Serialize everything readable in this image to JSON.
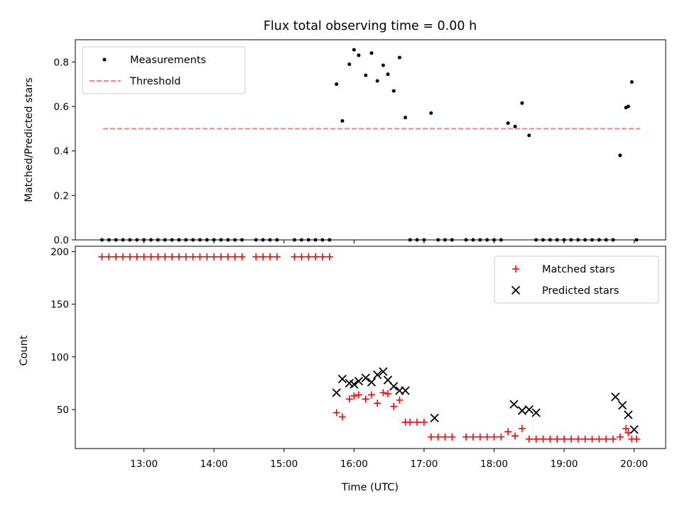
{
  "chart_data": [
    {
      "type": "scatter",
      "title": "Flux total observing time = 0.00 h",
      "xlabel": "",
      "ylabel": "Matched/Predicted stars",
      "xlim_hours": [
        12.02,
        20.45
      ],
      "ylim": [
        0,
        0.9
      ],
      "yticks": [
        0.0,
        0.2,
        0.4,
        0.6,
        0.8
      ],
      "ytick_labels": [
        "0.0",
        "0.2",
        "0.4",
        "0.6",
        "0.8"
      ],
      "legend": {
        "position": "upper left",
        "entries": [
          "Measurements",
          "Threshold"
        ]
      },
      "series": [
        {
          "name": "Measurements",
          "color": "#000000",
          "marker": "dot",
          "x": [
            "12:24",
            "12:30",
            "12:36",
            "12:42",
            "12:48",
            "12:54",
            "13:00",
            "13:06",
            "13:12",
            "13:18",
            "13:24",
            "13:30",
            "13:36",
            "13:42",
            "13:48",
            "13:54",
            "14:00",
            "14:06",
            "14:12",
            "14:18",
            "14:24",
            "14:36",
            "14:42",
            "14:48",
            "14:54",
            "15:09",
            "15:15",
            "15:21",
            "15:27",
            "15:33",
            "15:39",
            "15:45",
            "15:50",
            "15:56",
            "16:00",
            "16:04",
            "16:10",
            "16:15",
            "16:20",
            "16:25",
            "16:29",
            "16:34",
            "16:39",
            "16:44",
            "16:48",
            "16:54",
            "17:00",
            "17:06",
            "17:12",
            "17:18",
            "17:24",
            "17:36",
            "17:42",
            "17:48",
            "17:54",
            "18:00",
            "18:06",
            "18:12",
            "18:18",
            "18:24",
            "18:30",
            "18:36",
            "18:42",
            "18:48",
            "18:54",
            "19:00",
            "19:06",
            "19:12",
            "19:18",
            "19:24",
            "19:30",
            "19:36",
            "19:42",
            "19:48",
            "19:53",
            "19:55",
            "19:58",
            "20:02"
          ],
          "y": [
            0,
            0,
            0,
            0,
            0,
            0,
            0,
            0,
            0,
            0,
            0,
            0,
            0,
            0,
            0,
            0,
            0,
            0,
            0,
            0,
            0,
            0,
            0,
            0,
            0,
            0,
            0,
            0,
            0,
            0,
            0,
            0.7,
            0.535,
            0.79,
            0.855,
            0.83,
            0.74,
            0.84,
            0.715,
            0.785,
            0.745,
            0.67,
            0.82,
            0.55,
            0,
            0,
            0,
            0.57,
            0,
            0,
            0,
            0,
            0,
            0,
            0,
            0,
            0,
            0.525,
            0.51,
            0.615,
            0.47,
            0,
            0,
            0,
            0,
            0,
            0,
            0,
            0,
            0,
            0,
            0,
            0,
            0.38,
            0.595,
            0.6,
            0.71,
            0
          ]
        },
        {
          "name": "Threshold",
          "color": "#ff8080",
          "style": "dashed",
          "x": [
            "12:25",
            "20:05"
          ],
          "y": [
            0.5,
            0.5
          ]
        }
      ]
    },
    {
      "type": "scatter",
      "title": "",
      "xlabel": "Time (UTC)",
      "ylabel": "Count",
      "xlim_hours": [
        12.02,
        20.45
      ],
      "ylim": [
        13,
        205
      ],
      "yticks": [
        50,
        100,
        150,
        200
      ],
      "ytick_labels": [
        "50",
        "100",
        "150",
        "200"
      ],
      "xticks": [
        "13:00",
        "14:00",
        "15:00",
        "16:00",
        "17:00",
        "18:00",
        "19:00",
        "20:00"
      ],
      "legend": {
        "position": "upper right",
        "entries": [
          "Matched stars",
          "Predicted stars"
        ]
      },
      "series": [
        {
          "name": "Matched stars",
          "color": "#ff0000",
          "marker": "plus",
          "x": [
            "12:24",
            "12:30",
            "12:36",
            "12:42",
            "12:48",
            "12:54",
            "13:00",
            "13:06",
            "13:12",
            "13:18",
            "13:24",
            "13:30",
            "13:36",
            "13:42",
            "13:48",
            "13:54",
            "14:00",
            "14:06",
            "14:12",
            "14:18",
            "14:24",
            "14:36",
            "14:42",
            "14:48",
            "14:54",
            "15:09",
            "15:15",
            "15:21",
            "15:27",
            "15:33",
            "15:39",
            "15:45",
            "15:50",
            "15:56",
            "16:00",
            "16:04",
            "16:10",
            "16:15",
            "16:20",
            "16:25",
            "16:29",
            "16:34",
            "16:39",
            "16:44",
            "16:48",
            "16:54",
            "17:00",
            "17:06",
            "17:12",
            "17:18",
            "17:24",
            "17:36",
            "17:42",
            "17:48",
            "17:54",
            "18:00",
            "18:06",
            "18:12",
            "18:18",
            "18:24",
            "18:30",
            "18:36",
            "18:42",
            "18:48",
            "18:54",
            "19:00",
            "19:06",
            "19:12",
            "19:18",
            "19:24",
            "19:30",
            "19:36",
            "19:42",
            "19:48",
            "19:53",
            "19:55",
            "19:58",
            "20:02"
          ],
          "y": [
            195,
            195,
            195,
            195,
            195,
            195,
            195,
            195,
            195,
            195,
            195,
            195,
            195,
            195,
            195,
            195,
            195,
            195,
            195,
            195,
            195,
            195,
            195,
            195,
            195,
            195,
            195,
            195,
            195,
            195,
            195,
            47,
            43,
            60,
            63,
            64,
            60,
            64,
            56,
            66,
            65,
            53,
            59,
            38,
            38,
            38,
            38,
            24,
            24,
            24,
            24,
            24,
            24,
            24,
            24,
            24,
            24,
            29,
            25,
            32,
            22,
            22,
            22,
            22,
            22,
            22,
            22,
            22,
            22,
            22,
            22,
            22,
            22,
            24,
            32,
            28,
            22,
            22
          ]
        },
        {
          "name": "Predicted stars",
          "color": "#000000",
          "marker": "cross",
          "x": [
            "15:45",
            "15:50",
            "15:56",
            "16:00",
            "16:04",
            "16:10",
            "16:15",
            "16:20",
            "16:25",
            "16:29",
            "16:34",
            "16:39",
            "16:44",
            "17:09",
            "18:17",
            "18:24",
            "18:30",
            "18:36",
            "19:44",
            "19:50",
            "19:55",
            "20:00"
          ],
          "y": [
            66,
            79,
            75,
            74,
            77,
            80,
            76,
            83,
            86,
            78,
            72,
            68,
            68,
            42,
            55,
            49,
            50,
            47,
            62,
            54,
            45,
            31
          ]
        }
      ]
    }
  ]
}
